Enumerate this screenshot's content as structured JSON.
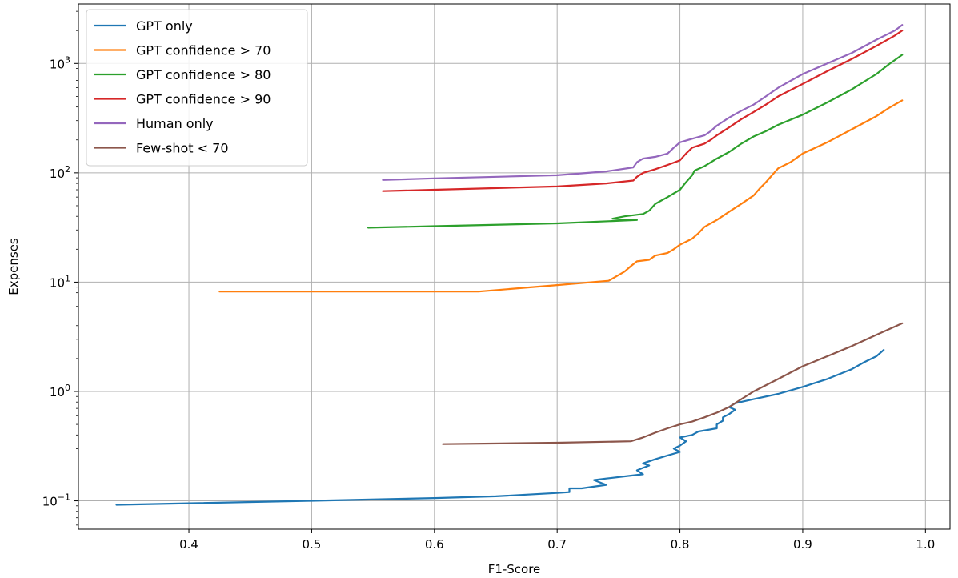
{
  "chart_data": {
    "type": "line",
    "title": "",
    "xlabel": "F1-Score",
    "ylabel": "Expenses",
    "xlim": [
      0.31,
      1.02
    ],
    "ylim": [
      0.055,
      3500
    ],
    "yscale": "log",
    "grid": true,
    "legend_position": "top-left",
    "x_ticks": [
      0.4,
      0.5,
      0.6,
      0.7,
      0.8,
      0.9,
      1.0
    ],
    "x_tick_labels": [
      "0.4",
      "0.5",
      "0.6",
      "0.7",
      "0.8",
      "0.9",
      "1.0"
    ],
    "y_ticks": [
      {
        "value": 0.1,
        "base": "10",
        "exp": "−1"
      },
      {
        "value": 1,
        "base": "10",
        "exp": "0"
      },
      {
        "value": 10,
        "base": "10",
        "exp": "1"
      },
      {
        "value": 100,
        "base": "10",
        "exp": "2"
      },
      {
        "value": 1000,
        "base": "10",
        "exp": "3"
      }
    ],
    "series": [
      {
        "name": "GPT only",
        "color": "#1f77b4",
        "points": [
          [
            0.341,
            0.092
          ],
          [
            0.4,
            0.095
          ],
          [
            0.5,
            0.1
          ],
          [
            0.6,
            0.106
          ],
          [
            0.65,
            0.11
          ],
          [
            0.7,
            0.118
          ],
          [
            0.71,
            0.12
          ],
          [
            0.71,
            0.13
          ],
          [
            0.72,
            0.13
          ],
          [
            0.74,
            0.14
          ],
          [
            0.73,
            0.155
          ],
          [
            0.74,
            0.16
          ],
          [
            0.76,
            0.17
          ],
          [
            0.77,
            0.175
          ],
          [
            0.765,
            0.19
          ],
          [
            0.77,
            0.2
          ],
          [
            0.775,
            0.21
          ],
          [
            0.77,
            0.22
          ],
          [
            0.78,
            0.24
          ],
          [
            0.79,
            0.26
          ],
          [
            0.8,
            0.28
          ],
          [
            0.795,
            0.3
          ],
          [
            0.8,
            0.32
          ],
          [
            0.805,
            0.35
          ],
          [
            0.8,
            0.38
          ],
          [
            0.81,
            0.4
          ],
          [
            0.815,
            0.43
          ],
          [
            0.83,
            0.46
          ],
          [
            0.83,
            0.5
          ],
          [
            0.835,
            0.54
          ],
          [
            0.835,
            0.58
          ],
          [
            0.84,
            0.62
          ],
          [
            0.845,
            0.68
          ],
          [
            0.84,
            0.72
          ],
          [
            0.845,
            0.78
          ],
          [
            0.86,
            0.85
          ],
          [
            0.88,
            0.95
          ],
          [
            0.9,
            1.1
          ],
          [
            0.92,
            1.3
          ],
          [
            0.94,
            1.6
          ],
          [
            0.95,
            1.85
          ],
          [
            0.96,
            2.1
          ],
          [
            0.966,
            2.4
          ]
        ]
      },
      {
        "name": "GPT confidence > 70",
        "color": "#ff7f0e",
        "points": [
          [
            0.425,
            8.2
          ],
          [
            0.5,
            8.2
          ],
          [
            0.6,
            8.2
          ],
          [
            0.636,
            8.2
          ],
          [
            0.7,
            9.4
          ],
          [
            0.742,
            10.3
          ],
          [
            0.755,
            12.5
          ],
          [
            0.76,
            14
          ],
          [
            0.765,
            15.5
          ],
          [
            0.775,
            16
          ],
          [
            0.78,
            17.5
          ],
          [
            0.79,
            18.5
          ],
          [
            0.795,
            20
          ],
          [
            0.8,
            22
          ],
          [
            0.81,
            25
          ],
          [
            0.815,
            28
          ],
          [
            0.82,
            32
          ],
          [
            0.83,
            37
          ],
          [
            0.84,
            44
          ],
          [
            0.85,
            52
          ],
          [
            0.86,
            62
          ],
          [
            0.865,
            72
          ],
          [
            0.87,
            82
          ],
          [
            0.875,
            95
          ],
          [
            0.88,
            110
          ],
          [
            0.89,
            125
          ],
          [
            0.9,
            150
          ],
          [
            0.92,
            190
          ],
          [
            0.94,
            250
          ],
          [
            0.96,
            330
          ],
          [
            0.97,
            390
          ],
          [
            0.981,
            460
          ]
        ]
      },
      {
        "name": "GPT confidence > 80",
        "color": "#2ca02c",
        "points": [
          [
            0.546,
            31.5
          ],
          [
            0.6,
            32.5
          ],
          [
            0.7,
            34.5
          ],
          [
            0.765,
            37
          ],
          [
            0.745,
            38
          ],
          [
            0.755,
            40
          ],
          [
            0.77,
            42
          ],
          [
            0.775,
            45
          ],
          [
            0.78,
            52
          ],
          [
            0.79,
            60
          ],
          [
            0.8,
            70
          ],
          [
            0.805,
            82
          ],
          [
            0.81,
            95
          ],
          [
            0.812,
            105
          ],
          [
            0.82,
            115
          ],
          [
            0.83,
            135
          ],
          [
            0.84,
            155
          ],
          [
            0.85,
            185
          ],
          [
            0.86,
            215
          ],
          [
            0.87,
            240
          ],
          [
            0.88,
            275
          ],
          [
            0.9,
            340
          ],
          [
            0.92,
            440
          ],
          [
            0.94,
            580
          ],
          [
            0.96,
            800
          ],
          [
            0.97,
            980
          ],
          [
            0.981,
            1200
          ]
        ]
      },
      {
        "name": "GPT confidence > 90",
        "color": "#d62728",
        "points": [
          [
            0.558,
            68
          ],
          [
            0.6,
            70
          ],
          [
            0.7,
            75
          ],
          [
            0.74,
            80
          ],
          [
            0.762,
            85
          ],
          [
            0.765,
            92
          ],
          [
            0.77,
            100
          ],
          [
            0.78,
            108
          ],
          [
            0.79,
            118
          ],
          [
            0.8,
            130
          ],
          [
            0.805,
            150
          ],
          [
            0.81,
            170
          ],
          [
            0.82,
            185
          ],
          [
            0.825,
            200
          ],
          [
            0.83,
            220
          ],
          [
            0.84,
            260
          ],
          [
            0.85,
            310
          ],
          [
            0.86,
            360
          ],
          [
            0.87,
            420
          ],
          [
            0.88,
            500
          ],
          [
            0.9,
            650
          ],
          [
            0.92,
            850
          ],
          [
            0.94,
            1100
          ],
          [
            0.96,
            1450
          ],
          [
            0.975,
            1800
          ],
          [
            0.981,
            2000
          ]
        ]
      },
      {
        "name": "Human only",
        "color": "#9467bd",
        "points": [
          [
            0.558,
            86
          ],
          [
            0.6,
            89
          ],
          [
            0.7,
            95
          ],
          [
            0.74,
            103
          ],
          [
            0.762,
            112
          ],
          [
            0.765,
            125
          ],
          [
            0.77,
            135
          ],
          [
            0.78,
            140
          ],
          [
            0.79,
            150
          ],
          [
            0.795,
            170
          ],
          [
            0.8,
            190
          ],
          [
            0.81,
            205
          ],
          [
            0.82,
            220
          ],
          [
            0.825,
            240
          ],
          [
            0.83,
            270
          ],
          [
            0.84,
            320
          ],
          [
            0.85,
            370
          ],
          [
            0.86,
            420
          ],
          [
            0.87,
            500
          ],
          [
            0.88,
            600
          ],
          [
            0.9,
            800
          ],
          [
            0.92,
            1000
          ],
          [
            0.94,
            1250
          ],
          [
            0.96,
            1650
          ],
          [
            0.975,
            2000
          ],
          [
            0.981,
            2250
          ]
        ]
      },
      {
        "name": "Few-shot < 70",
        "color": "#8c564b",
        "points": [
          [
            0.607,
            0.33
          ],
          [
            0.7,
            0.34
          ],
          [
            0.76,
            0.35
          ],
          [
            0.77,
            0.38
          ],
          [
            0.78,
            0.42
          ],
          [
            0.79,
            0.46
          ],
          [
            0.8,
            0.5
          ],
          [
            0.81,
            0.53
          ],
          [
            0.82,
            0.58
          ],
          [
            0.83,
            0.64
          ],
          [
            0.84,
            0.72
          ],
          [
            0.85,
            0.85
          ],
          [
            0.86,
            1.0
          ],
          [
            0.88,
            1.3
          ],
          [
            0.9,
            1.7
          ],
          [
            0.92,
            2.1
          ],
          [
            0.94,
            2.6
          ],
          [
            0.96,
            3.3
          ],
          [
            0.981,
            4.2
          ]
        ]
      }
    ]
  }
}
